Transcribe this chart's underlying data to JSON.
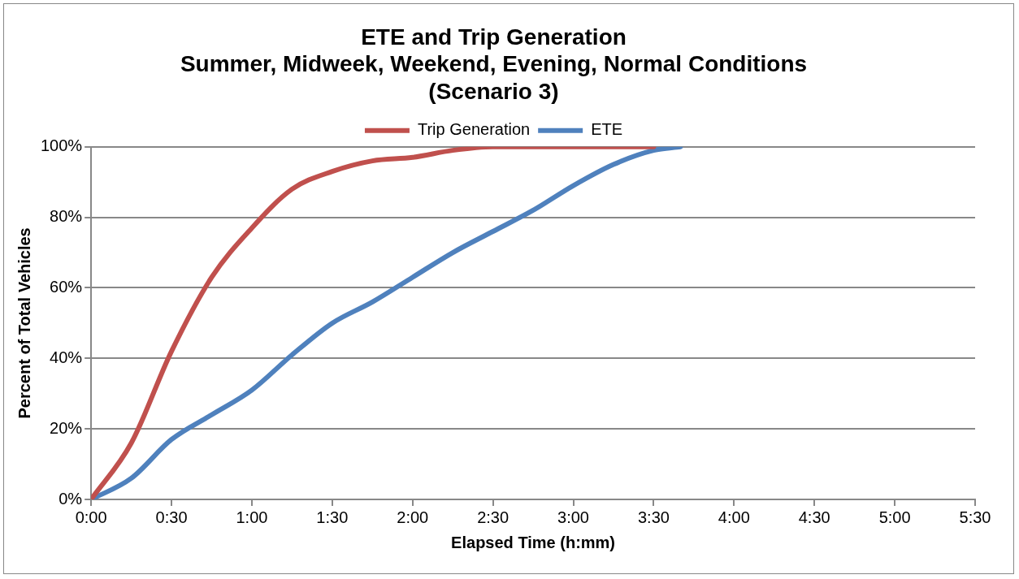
{
  "chart_data": {
    "type": "line",
    "title": [
      "ETE and Trip Generation",
      "Summer, Midweek, Weekend, Evening, Normal Conditions",
      "(Scenario 3)"
    ],
    "xlabel": "Elapsed Time (h:mm)",
    "ylabel": "Percent of Total Vehicles",
    "xlim": [
      0,
      5.5
    ],
    "xticks": [
      {
        "value": 0,
        "label": "0:00"
      },
      {
        "value": 0.5,
        "label": "0:30"
      },
      {
        "value": 1,
        "label": "1:00"
      },
      {
        "value": 1.5,
        "label": "1:30"
      },
      {
        "value": 2,
        "label": "2:00"
      },
      {
        "value": 2.5,
        "label": "2:30"
      },
      {
        "value": 3,
        "label": "3:00"
      },
      {
        "value": 3.5,
        "label": "3:30"
      },
      {
        "value": 4,
        "label": "4:00"
      },
      {
        "value": 4.5,
        "label": "4:30"
      },
      {
        "value": 5,
        "label": "5:00"
      },
      {
        "value": 5.5,
        "label": "5:30"
      }
    ],
    "ylim": [
      0,
      100
    ],
    "yticks": [
      {
        "value": 0,
        "label": "0%"
      },
      {
        "value": 20,
        "label": "20%"
      },
      {
        "value": 40,
        "label": "40%"
      },
      {
        "value": 60,
        "label": "60%"
      },
      {
        "value": 80,
        "label": "80%"
      },
      {
        "value": 100,
        "label": "100%"
      }
    ],
    "grid": "y",
    "legend": "top",
    "marker": "none",
    "series": [
      {
        "name": "Trip Generation",
        "color": "#c0504d",
        "x": [
          0,
          0.25,
          0.5,
          0.75,
          1,
          1.25,
          1.5,
          1.75,
          2,
          2.25,
          2.5,
          3,
          3.5
        ],
        "values": [
          0,
          16,
          42,
          63,
          77,
          88,
          93,
          96,
          97,
          99,
          100,
          100,
          100
        ]
      },
      {
        "name": "ETE",
        "color": "#4f81bd",
        "x": [
          0,
          0.25,
          0.5,
          0.75,
          1,
          1.25,
          1.5,
          1.75,
          2,
          2.25,
          2.5,
          2.75,
          3,
          3.25,
          3.5,
          3.667
        ],
        "values": [
          0,
          6,
          17,
          24,
          31,
          41,
          50,
          56,
          63,
          70,
          76,
          82,
          89,
          95,
          99,
          100
        ]
      }
    ]
  }
}
